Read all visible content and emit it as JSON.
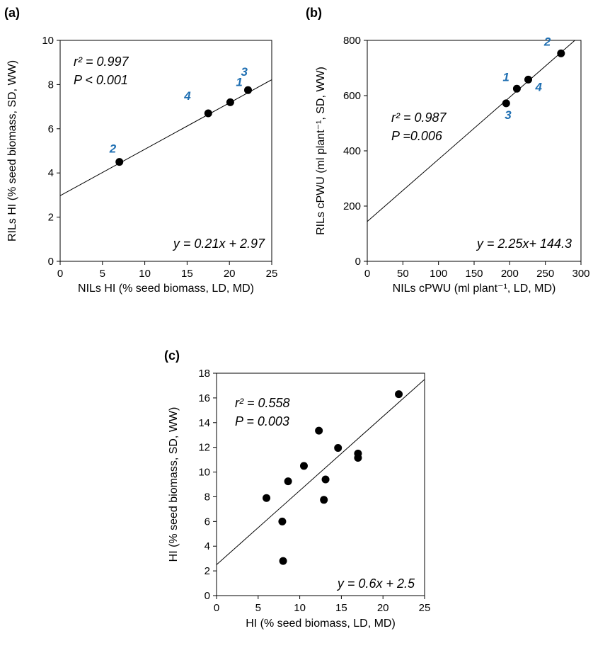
{
  "chart_data": [
    {
      "type": "scatter",
      "panel_label": "(a)",
      "xlabel": "NILs HI (% seed biomass, LD, MD)",
      "ylabel": "RILs HI (% seed biomass, SD, WW)",
      "xlim": [
        0,
        25
      ],
      "ylim": [
        0,
        10
      ],
      "xticks": [
        0,
        5,
        10,
        15,
        20,
        25
      ],
      "yticks": [
        0,
        2,
        4,
        6,
        8,
        10
      ],
      "grid": false,
      "points": [
        {
          "x": 7.0,
          "y": 4.5,
          "label": "2"
        },
        {
          "x": 17.5,
          "y": 6.7,
          "label": "4"
        },
        {
          "x": 20.1,
          "y": 7.2,
          "label": "1"
        },
        {
          "x": 22.2,
          "y": 7.75,
          "label": "3"
        }
      ],
      "fit": {
        "slope": 0.21,
        "intercept": 2.97
      },
      "annotations": {
        "r2": "r² = 0.997",
        "p": "P < 0.001",
        "equation": "y = 0.21x + 2.97"
      }
    },
    {
      "type": "scatter",
      "panel_label": "(b)",
      "xlabel": "NILs cPWU (ml plant⁻¹, LD, MD)",
      "ylabel": "RILs cPWU (ml plant⁻¹, SD, WW)",
      "xlim": [
        0,
        300
      ],
      "ylim": [
        0,
        800
      ],
      "xticks": [
        0,
        50,
        100,
        150,
        200,
        250,
        300
      ],
      "yticks": [
        0,
        200,
        400,
        600,
        800
      ],
      "grid": false,
      "points": [
        {
          "x": 195,
          "y": 572,
          "label": "3"
        },
        {
          "x": 210,
          "y": 625,
          "label": "1"
        },
        {
          "x": 226,
          "y": 658,
          "label": "4"
        },
        {
          "x": 272,
          "y": 753,
          "label": "2"
        }
      ],
      "fit": {
        "slope": 2.25,
        "intercept": 144.3
      },
      "annotations": {
        "r2": "r² = 0.987",
        "p": "P =0.006",
        "equation": "y = 2.25x+ 144.3"
      }
    },
    {
      "type": "scatter",
      "panel_label": "(c)",
      "xlabel": "HI (% seed biomass, LD, MD)",
      "ylabel": "HI (% seed biomass, SD, WW)",
      "xlim": [
        0,
        25
      ],
      "ylim": [
        0,
        18
      ],
      "xticks": [
        0,
        5,
        10,
        15,
        20,
        25
      ],
      "yticks": [
        0,
        2,
        4,
        6,
        8,
        10,
        12,
        14,
        16,
        18
      ],
      "grid": false,
      "points": [
        {
          "x": 6.0,
          "y": 7.9
        },
        {
          "x": 7.9,
          "y": 6.0
        },
        {
          "x": 8.0,
          "y": 2.8
        },
        {
          "x": 8.6,
          "y": 9.25
        },
        {
          "x": 10.5,
          "y": 10.5
        },
        {
          "x": 12.3,
          "y": 13.35
        },
        {
          "x": 12.9,
          "y": 7.75
        },
        {
          "x": 13.1,
          "y": 9.4
        },
        {
          "x": 14.6,
          "y": 11.95
        },
        {
          "x": 17.0,
          "y": 11.5
        },
        {
          "x": 17.0,
          "y": 11.15
        },
        {
          "x": 21.9,
          "y": 16.3
        }
      ],
      "fit": {
        "slope": 0.6,
        "intercept": 2.5
      },
      "annotations": {
        "r2": "r² = 0.558",
        "p": "P = 0.003",
        "equation": "y = 0.6x + 2.5"
      }
    }
  ]
}
